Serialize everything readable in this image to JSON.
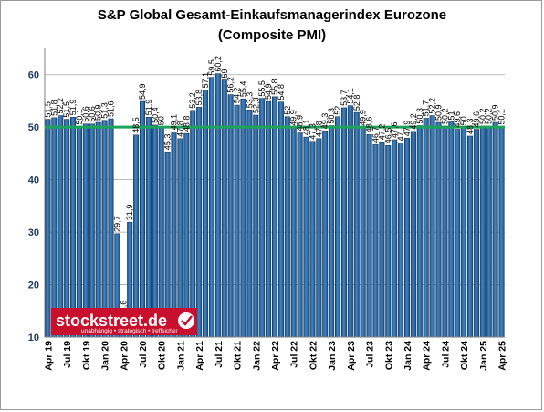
{
  "chart_data": {
    "type": "bar",
    "title": "S&P Global Gesamt-Einkaufsmanagerindex Eurozone",
    "subtitle": "(Composite PMI)",
    "ylim": [
      10,
      65
    ],
    "yticks": [
      10,
      20,
      30,
      40,
      50,
      60
    ],
    "threshold": 50,
    "threshold_color": "#1ea35a",
    "bar_color": "#2f6fa8",
    "grid": true,
    "categories": [
      "Apr 19",
      "Mai 19",
      "Jun 19",
      "Jul 19",
      "Aug 19",
      "Sep 19",
      "Okt 19",
      "Nov 19",
      "Dez 19",
      "Jan 20",
      "Feb 20",
      "Mär 20",
      "Apr 20",
      "Mai 20",
      "Jun 20",
      "Jul 20",
      "Aug 20",
      "Sep 20",
      "Okt 20",
      "Nov 20",
      "Dez 20",
      "Jan 21",
      "Feb 21",
      "Mär 21",
      "Apr 21",
      "Mai 21",
      "Jun 21",
      "Jul 21",
      "Aug 21",
      "Sep 21",
      "Okt 21",
      "Nov 21",
      "Dez 21",
      "Jan 22",
      "Feb 22",
      "Mär 22",
      "Apr 22",
      "Mai 22",
      "Jun 22",
      "Jul 22",
      "Aug 22",
      "Sep 22",
      "Okt 22",
      "Nov 22",
      "Dez 22",
      "Jan 23",
      "Feb 23",
      "Mär 23",
      "Apr 23",
      "Mai 23",
      "Jun 23",
      "Jul 23",
      "Aug 23",
      "Sep 23",
      "Okt 23",
      "Nov 23",
      "Dez 23",
      "Jan 24",
      "Feb 24",
      "Mär 24",
      "Apr 24",
      "Mai 24",
      "Jun 24",
      "Jul 24",
      "Aug 24",
      "Sep 24",
      "Okt 24",
      "Nov 24",
      "Dez 24",
      "Jan 25",
      "Feb 25",
      "Mär 25",
      "Apr 25"
    ],
    "tick_labels": [
      "Apr 19",
      "",
      "",
      "Jul 19",
      "",
      "",
      "Okt 19",
      "",
      "",
      "Jan 20",
      "",
      "",
      "Apr 20",
      "",
      "",
      "Jul 20",
      "",
      "",
      "Okt 20",
      "",
      "",
      "Jan 21",
      "",
      "",
      "Apr 21",
      "",
      "",
      "Jul 21",
      "",
      "",
      "Okt 21",
      "",
      "",
      "Jan 22",
      "",
      "",
      "Apr 22",
      "",
      "",
      "Jul 22",
      "",
      "",
      "Okt 22",
      "",
      "",
      "Jan 23",
      "",
      "",
      "Apr 23",
      "",
      "",
      "Jul 23",
      "",
      "",
      "Okt 23",
      "",
      "",
      "Jan 24",
      "",
      "",
      "Apr 24",
      "",
      "",
      "Jul 24",
      "",
      "",
      "Okt 24",
      "",
      "",
      "Jan 25",
      "",
      "",
      "Apr 25"
    ],
    "values": [
      51.5,
      51.8,
      52.2,
      51.5,
      51.9,
      50.1,
      50.6,
      50.6,
      50.9,
      51.3,
      51.6,
      29.7,
      13.6,
      31.9,
      48.5,
      54.9,
      51.9,
      50.4,
      50.0,
      45.3,
      49.1,
      47.8,
      48.8,
      53.2,
      53.8,
      57.1,
      59.5,
      60.2,
      59.0,
      56.2,
      54.2,
      55.4,
      53.3,
      52.3,
      55.5,
      54.9,
      55.8,
      54.8,
      52.0,
      49.9,
      48.9,
      48.1,
      47.3,
      47.8,
      49.3,
      50.3,
      52.0,
      53.7,
      54.1,
      52.8,
      49.9,
      48.6,
      46.7,
      47.2,
      46.5,
      47.6,
      47.0,
      47.9,
      49.2,
      50.3,
      51.7,
      52.2,
      50.9,
      50.2,
      51.0,
      49.6,
      50.0,
      48.3,
      49.6,
      50.2,
      50.2,
      50.9,
      50.1
    ],
    "labels": [
      "51,5",
      "51,8",
      "52,2",
      "51,5",
      "51,9",
      "50,1",
      "50,6",
      "50,6",
      "50,9",
      "51,3",
      "51,6",
      "29,7",
      "13,6",
      "31,9",
      "48,5",
      "54,9",
      "51,9",
      "50,4",
      "50",
      "45,3",
      "49,1",
      "47,8",
      "48,8",
      "53,2",
      "53,8",
      "57,1",
      "59,5",
      "60,2",
      "59",
      "56,2",
      "54,2",
      "55,4",
      "53,3",
      "52,3",
      "55,5",
      "54,9",
      "55,8",
      "54,8",
      "52",
      "49,9",
      "48,9",
      "48,1",
      "47,3",
      "47,8",
      "49,3",
      "50,3",
      "52",
      "53,7",
      "54,1",
      "52,8",
      "49,9",
      "48,6",
      "46,7",
      "47,2",
      "46,5",
      "47,6",
      "47",
      "47,9",
      "49,2",
      "50,3",
      "51,7",
      "52,2",
      "50,9",
      "50,2",
      "51",
      "49,6",
      "50",
      "48,3",
      "49,6",
      "50,2",
      "50,2",
      "50,9",
      "50,1"
    ]
  },
  "logo": {
    "name": "stockstreet.de",
    "tagline": "unabhängig • strategisch • treffsicher",
    "color": "#c8102e"
  }
}
